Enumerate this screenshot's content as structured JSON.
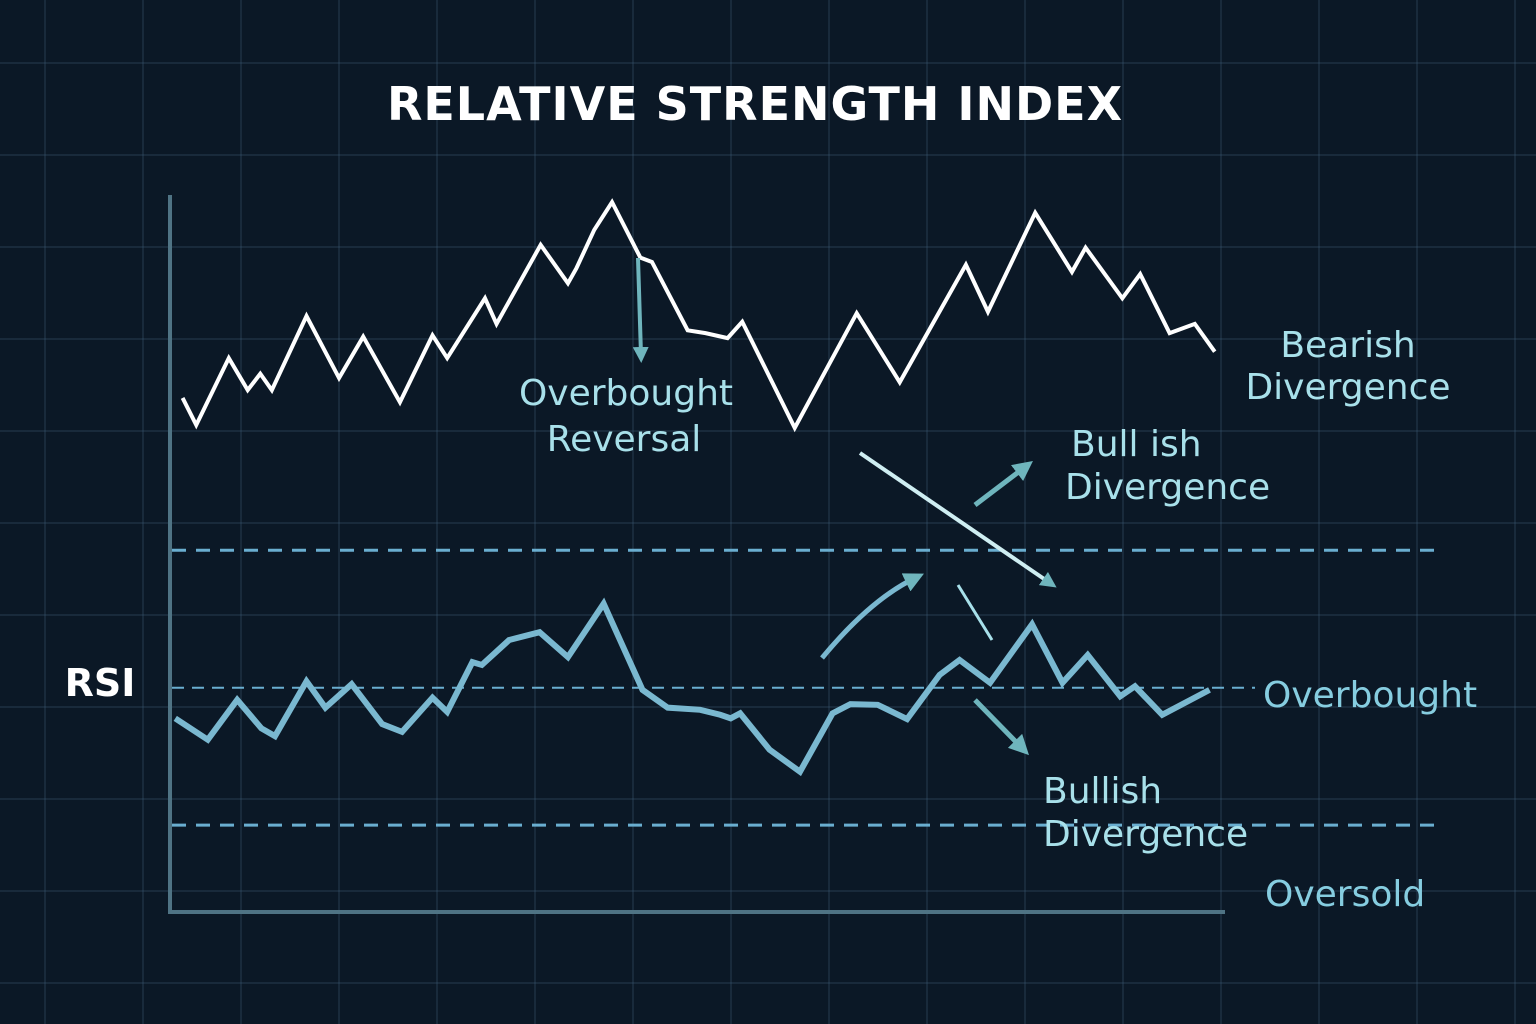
{
  "chart_data": {
    "type": "line",
    "title": "RELATIVE STRENGTH INDEX",
    "ylabel": "RSI",
    "xlim": [
      0,
      100
    ],
    "ylim": [
      0,
      100
    ],
    "grid": true,
    "colors": {
      "background": "#0b1826",
      "price": "#ffffff",
      "rsi": "#7ab8d0",
      "dashed": "#6aaed0",
      "annotation": "#a8e0ea",
      "arrow": "#6fb5bd"
    },
    "series": [
      {
        "x": [
          1.2,
          2.5,
          5.6,
          7.4,
          8.6,
          9.7,
          13.0,
          16.1,
          18.4,
          21.9,
          25.0,
          26.4,
          30.0,
          31.1,
          35.3,
          37.9,
          38.7,
          40.4,
          42.1,
          44.8,
          45.9,
          49.3,
          51.0,
          53.1,
          54.5,
          59.5,
          65.4,
          69.5,
          75.8,
          77.9,
          82.4,
          85.9,
          87.2,
          90.7,
          92.4,
          95.2,
          97.6,
          99.5
        ],
        "values": [
          72.2,
          68.4,
          77.8,
          73.3,
          75.6,
          73.3,
          83.7,
          75.0,
          80.8,
          71.6,
          81.0,
          77.8,
          86.2,
          82.6,
          93.7,
          88.3,
          90.4,
          95.8,
          99.7,
          91.9,
          91.3,
          81.7,
          81.3,
          80.6,
          82.9,
          68.0,
          84.1,
          74.4,
          90.9,
          84.3,
          98.2,
          89.9,
          93.3,
          86.2,
          89.6,
          81.3,
          82.6,
          78.7
        ]
      },
      {
        "x": [
          0.5,
          3.6,
          6.4,
          8.7,
          10.0,
          13.0,
          14.8,
          17.3,
          20.2,
          22.1,
          25.0,
          26.4,
          28.8,
          29.7,
          32.3,
          35.2,
          37.9,
          41.3,
          45.0,
          47.4,
          50.5,
          52.4,
          53.4,
          54.3,
          57.1,
          60.0,
          63.1,
          64.8,
          67.4,
          70.2,
          73.3,
          75.2,
          78.1,
          82.1,
          85.0,
          87.4,
          90.5,
          91.9,
          94.5,
          99.0
        ],
        "values": [
          27.2,
          24.2,
          29.8,
          25.8,
          24.7,
          32.4,
          28.7,
          32.0,
          26.4,
          25.3,
          30.1,
          28.1,
          35.1,
          34.7,
          38.2,
          39.3,
          35.8,
          43.3,
          31.2,
          28.7,
          28.4,
          27.7,
          27.2,
          27.9,
          22.8,
          19.7,
          27.9,
          29.2,
          29.1,
          27.1,
          33.3,
          35.4,
          32.2,
          40.4,
          32.2,
          36.1,
          30.3,
          31.7,
          27.7,
          31.2
        ]
      }
    ],
    "reference_lines": [
      50.8,
      31.5,
      12.2
    ],
    "annotations": {
      "overbought_reversal": [
        "Overbought",
        "Reversal"
      ],
      "bearish_divergence": [
        "Bearish",
        "Divergence"
      ],
      "bullish_divergence_upper": [
        "Bull ish",
        "Divergence"
      ],
      "bullish_divergence_lower": [
        "Bullish",
        "Divergence"
      ],
      "overbought": "Overbought",
      "oversold": "Oversold"
    }
  }
}
